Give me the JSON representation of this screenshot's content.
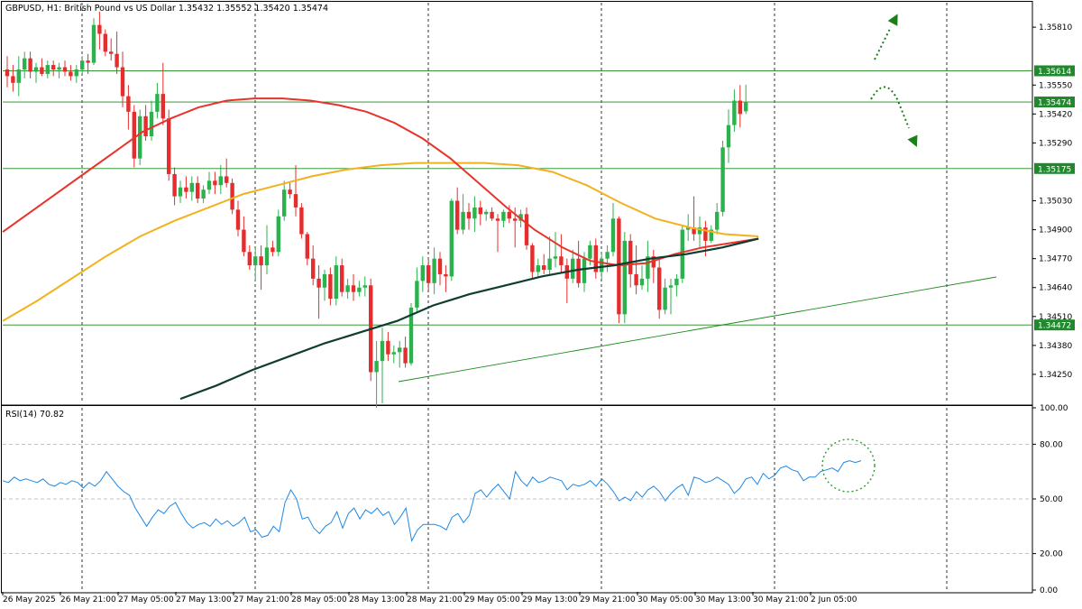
{
  "header": {
    "symbol_line": "GBPUSD, H1:  British Pound vs US Dollar  1.35432 1.35552 1.35420 1.35474"
  },
  "chart_data": [
    {
      "type": "candlestick",
      "title": "GBPUSD, H1:  British Pound vs US Dollar  1.35432 1.35552 1.35420 1.35474",
      "ylim": [
        1.3412,
        1.3592
      ],
      "y_ticks": [
        "1.35810",
        "1.35550",
        "1.35420",
        "1.35290",
        "1.35030",
        "1.34900",
        "1.34770",
        "1.34640",
        "1.34510",
        "1.34380",
        "1.34250"
      ],
      "x_tick_labels": [
        "26 May 2025",
        "26 May 21:00",
        "27 May 05:00",
        "27 May 13:00",
        "27 May 21:00",
        "28 May 05:00",
        "28 May 13:00",
        "28 May 21:00",
        "29 May 05:00",
        "29 May 13:00",
        "29 May 21:00",
        "30 May 05:00",
        "30 May 13:00",
        "30 May 21:00",
        "2 Jun 05:00"
      ],
      "candles": [
        [
          1.3562,
          1.3568,
          1.3554,
          1.3559
        ],
        [
          1.3559,
          1.3564,
          1.3552,
          1.3556
        ],
        [
          1.3556,
          1.3568,
          1.355,
          1.3562
        ],
        [
          1.3562,
          1.357,
          1.3558,
          1.3567
        ],
        [
          1.3567,
          1.357,
          1.3558,
          1.3561
        ],
        [
          1.3561,
          1.3565,
          1.3556,
          1.3563
        ],
        [
          1.3563,
          1.3567,
          1.3559,
          1.356
        ],
        [
          1.356,
          1.3566,
          1.3558,
          1.3564
        ],
        [
          1.3564,
          1.3566,
          1.3559,
          1.3562
        ],
        [
          1.3562,
          1.3565,
          1.3558,
          1.3563
        ],
        [
          1.3563,
          1.3566,
          1.3559,
          1.3561
        ],
        [
          1.3561,
          1.3564,
          1.3557,
          1.3559
        ],
        [
          1.3559,
          1.3564,
          1.3556,
          1.3562
        ],
        [
          1.3562,
          1.3568,
          1.356,
          1.3566
        ],
        [
          1.3566,
          1.3569,
          1.356,
          1.3565
        ],
        [
          1.3565,
          1.3585,
          1.3564,
          1.3582
        ],
        [
          1.3582,
          1.3588,
          1.3571,
          1.3578
        ],
        [
          1.3578,
          1.358,
          1.3568,
          1.357
        ],
        [
          1.357,
          1.3576,
          1.3566,
          1.3569
        ],
        [
          1.3569,
          1.3579,
          1.356,
          1.3563
        ],
        [
          1.3563,
          1.357,
          1.3545,
          1.355
        ],
        [
          1.355,
          1.3555,
          1.3535,
          1.3543
        ],
        [
          1.3543,
          1.3546,
          1.3518,
          1.3522
        ],
        [
          1.3522,
          1.3544,
          1.3519,
          1.3541
        ],
        [
          1.3541,
          1.3546,
          1.353,
          1.3532
        ],
        [
          1.3532,
          1.3548,
          1.353,
          1.3543
        ],
        [
          1.3543,
          1.3556,
          1.354,
          1.3551
        ],
        [
          1.3551,
          1.3565,
          1.3537,
          1.354
        ],
        [
          1.354,
          1.3544,
          1.3512,
          1.3515
        ],
        [
          1.3515,
          1.3518,
          1.3501,
          1.3505
        ],
        [
          1.3505,
          1.3512,
          1.3502,
          1.3509
        ],
        [
          1.3509,
          1.3514,
          1.3504,
          1.3507
        ],
        [
          1.3507,
          1.3514,
          1.3503,
          1.3511
        ],
        [
          1.3511,
          1.3514,
          1.3502,
          1.3504
        ],
        [
          1.3504,
          1.351,
          1.3502,
          1.3508
        ],
        [
          1.3508,
          1.3516,
          1.3506,
          1.3512
        ],
        [
          1.3512,
          1.3516,
          1.3506,
          1.351
        ],
        [
          1.351,
          1.3519,
          1.3506,
          1.3514
        ],
        [
          1.3514,
          1.3522,
          1.3509,
          1.3511
        ],
        [
          1.3511,
          1.3513,
          1.3497,
          1.3499
        ],
        [
          1.3499,
          1.3503,
          1.3487,
          1.349
        ],
        [
          1.349,
          1.3496,
          1.3478,
          1.348
        ],
        [
          1.348,
          1.3483,
          1.3472,
          1.3474
        ],
        [
          1.3474,
          1.3482,
          1.3467,
          1.3478
        ],
        [
          1.3478,
          1.3483,
          1.3463,
          1.3474
        ],
        [
          1.3474,
          1.3492,
          1.347,
          1.3482
        ],
        [
          1.3482,
          1.3485,
          1.3478,
          1.348
        ],
        [
          1.348,
          1.3499,
          1.3478,
          1.3496
        ],
        [
          1.3496,
          1.3512,
          1.3494,
          1.3508
        ],
        [
          1.3508,
          1.3511,
          1.3504,
          1.3506
        ],
        [
          1.3506,
          1.3519,
          1.3496,
          1.35
        ],
        [
          1.35,
          1.3502,
          1.3486,
          1.3488
        ],
        [
          1.3488,
          1.3489,
          1.3474,
          1.3477
        ],
        [
          1.3477,
          1.3483,
          1.3465,
          1.3468
        ],
        [
          1.3468,
          1.3474,
          1.345,
          1.3464
        ],
        [
          1.3464,
          1.3472,
          1.3458,
          1.347
        ],
        [
          1.347,
          1.3473,
          1.3456,
          1.3459
        ],
        [
          1.3459,
          1.3478,
          1.3456,
          1.3474
        ],
        [
          1.3474,
          1.3477,
          1.346,
          1.3462
        ],
        [
          1.3462,
          1.3468,
          1.3459,
          1.3465
        ],
        [
          1.3465,
          1.347,
          1.3458,
          1.3462
        ],
        [
          1.3462,
          1.3467,
          1.346,
          1.3464
        ],
        [
          1.3464,
          1.3469,
          1.346,
          1.3465
        ],
        [
          1.3465,
          1.3468,
          1.3422,
          1.3426
        ],
        [
          1.3426,
          1.344,
          1.341,
          1.3431
        ],
        [
          1.3431,
          1.3446,
          1.3412,
          1.344
        ],
        [
          1.344,
          1.3444,
          1.3431,
          1.3434
        ],
        [
          1.3434,
          1.3438,
          1.343,
          1.3435
        ],
        [
          1.3435,
          1.344,
          1.3428,
          1.3437
        ],
        [
          1.3437,
          1.3442,
          1.3428,
          1.343
        ],
        [
          1.343,
          1.3457,
          1.3429,
          1.3455
        ],
        [
          1.3455,
          1.3473,
          1.3453,
          1.3467
        ],
        [
          1.3467,
          1.3478,
          1.3462,
          1.3474
        ],
        [
          1.3474,
          1.3477,
          1.3463,
          1.3466
        ],
        [
          1.3466,
          1.3482,
          1.3461,
          1.3477
        ],
        [
          1.3477,
          1.348,
          1.3465,
          1.347
        ],
        [
          1.347,
          1.3474,
          1.3462,
          1.3469
        ],
        [
          1.3469,
          1.3504,
          1.3467,
          1.3503
        ],
        [
          1.3503,
          1.3509,
          1.3488,
          1.349
        ],
        [
          1.349,
          1.3506,
          1.3488,
          1.3498
        ],
        [
          1.3498,
          1.3502,
          1.349,
          1.3495
        ],
        [
          1.3495,
          1.3505,
          1.3489,
          1.35
        ],
        [
          1.35,
          1.3503,
          1.3492,
          1.3497
        ],
        [
          1.3497,
          1.3499,
          1.3494,
          1.3498
        ],
        [
          1.3498,
          1.35,
          1.3494,
          1.3495
        ],
        [
          1.3495,
          1.3497,
          1.348,
          1.3494
        ],
        [
          1.3494,
          1.3499,
          1.3491,
          1.3498
        ],
        [
          1.3498,
          1.3501,
          1.3493,
          1.3495
        ],
        [
          1.3495,
          1.35,
          1.3482,
          1.3494
        ],
        [
          1.3494,
          1.3499,
          1.3491,
          1.3497
        ],
        [
          1.3497,
          1.35,
          1.3481,
          1.3483
        ],
        [
          1.3483,
          1.3484,
          1.3468,
          1.3471
        ],
        [
          1.3471,
          1.3477,
          1.3469,
          1.3474
        ],
        [
          1.3474,
          1.3479,
          1.347,
          1.3472
        ],
        [
          1.3472,
          1.3487,
          1.347,
          1.3477
        ],
        [
          1.3477,
          1.3489,
          1.3473,
          1.3478
        ],
        [
          1.3478,
          1.3488,
          1.3471,
          1.3474
        ],
        [
          1.3474,
          1.3477,
          1.3457,
          1.3468
        ],
        [
          1.3468,
          1.3481,
          1.3466,
          1.3477
        ],
        [
          1.3477,
          1.3485,
          1.3464,
          1.3466
        ],
        [
          1.3466,
          1.348,
          1.3462,
          1.3477
        ],
        [
          1.3477,
          1.3485,
          1.3474,
          1.3483
        ],
        [
          1.3483,
          1.3486,
          1.3468,
          1.3471
        ],
        [
          1.3471,
          1.348,
          1.3468,
          1.3477
        ],
        [
          1.3477,
          1.3483,
          1.3471,
          1.348
        ],
        [
          1.348,
          1.3502,
          1.3478,
          1.3495
        ],
        [
          1.3495,
          1.3496,
          1.3448,
          1.3452
        ],
        [
          1.3452,
          1.3489,
          1.3448,
          1.3485
        ],
        [
          1.3485,
          1.3488,
          1.3464,
          1.347
        ],
        [
          1.347,
          1.3483,
          1.3461,
          1.3465
        ],
        [
          1.3465,
          1.3474,
          1.3463,
          1.3468
        ],
        [
          1.3468,
          1.3485,
          1.3462,
          1.3478
        ],
        [
          1.3478,
          1.3481,
          1.3466,
          1.3473
        ],
        [
          1.3473,
          1.3477,
          1.345,
          1.3454
        ],
        [
          1.3454,
          1.3468,
          1.3452,
          1.3464
        ],
        [
          1.3464,
          1.3468,
          1.3452,
          1.3465
        ],
        [
          1.3465,
          1.347,
          1.346,
          1.3468
        ],
        [
          1.3468,
          1.3492,
          1.3466,
          1.349
        ],
        [
          1.349,
          1.3497,
          1.3485,
          1.3491
        ],
        [
          1.3491,
          1.3505,
          1.3485,
          1.3488
        ],
        [
          1.3488,
          1.3496,
          1.3482,
          1.3491
        ],
        [
          1.3491,
          1.3494,
          1.3478,
          1.3485
        ],
        [
          1.3485,
          1.3492,
          1.3484,
          1.349
        ],
        [
          1.349,
          1.3502,
          1.3488,
          1.3498
        ],
        [
          1.3498,
          1.353,
          1.3496,
          1.3527
        ],
        [
          1.3527,
          1.3544,
          1.352,
          1.3537
        ],
        [
          1.3537,
          1.3553,
          1.3534,
          1.3548
        ],
        [
          1.3548,
          1.3555,
          1.3536,
          1.3542
        ],
        [
          1.35432,
          1.35552,
          1.3542,
          1.35474
        ]
      ],
      "series": [
        {
          "name": "",
          "color": "#e8332a",
          "start": 0,
          "values": [
            1.3489,
            1.3498,
            1.3507,
            1.3516,
            1.3525,
            1.3534,
            1.354,
            1.3545,
            1.3548,
            1.3549,
            1.3549,
            1.3548,
            1.3546,
            1.3543,
            1.3538,
            1.3531,
            1.3522,
            1.3511,
            1.35,
            1.349,
            1.3482,
            1.3476,
            1.3474,
            1.3475,
            1.3479,
            1.3482,
            1.3484,
            1.3486
          ]
        },
        {
          "name": "",
          "color": "#f2b21e",
          "start": 0,
          "values": [
            1.3449,
            1.3458,
            1.3468,
            1.3478,
            1.3487,
            1.3494,
            1.35,
            1.3506,
            1.351,
            1.3514,
            1.3517,
            1.3519,
            1.352,
            1.352,
            1.352,
            1.3519,
            1.3516,
            1.351,
            1.3502,
            1.3495,
            1.3491,
            1.3488,
            1.3487
          ]
        },
        {
          "name": "",
          "color": "#0f3d32",
          "start": 0,
          "values": [
            1.3414,
            1.342,
            1.3427,
            1.3433,
            1.3439,
            1.3444,
            1.3449,
            1.3456,
            1.3461,
            1.3465,
            1.3469,
            1.3472,
            1.3474,
            1.3477,
            1.3479,
            1.3482,
            1.3486
          ]
        }
      ],
      "annotations": [
        {
          "label": "1.35614",
          "value": 1.35614
        },
        {
          "label": "1.35474",
          "value": 1.35474
        },
        {
          "label": "1.35175",
          "value": 1.35175
        },
        {
          "label": "1.34472",
          "value": 1.34472
        }
      ]
    },
    {
      "type": "line",
      "title": "RSI(14) 70.82",
      "ylim": [
        0,
        100
      ],
      "y_ticks": [
        "100.00",
        "80.00",
        "50.00",
        "20.00",
        "0.00"
      ],
      "series": [
        {
          "name": "RSI(14)",
          "color": "#1e88e5",
          "values": [
            60,
            59,
            62,
            60,
            61,
            60,
            59,
            61,
            58,
            57,
            59,
            58,
            60,
            59,
            56,
            59,
            57,
            60,
            65,
            61,
            57,
            54,
            52,
            45,
            40,
            35,
            40,
            44,
            42,
            46,
            48,
            42,
            37,
            34,
            36,
            37,
            35,
            39,
            36,
            38,
            35,
            37,
            40,
            32,
            33,
            29,
            30,
            35,
            32,
            48,
            55,
            50,
            39,
            40,
            34,
            31,
            35,
            37,
            43,
            34,
            42,
            45,
            39,
            44,
            42,
            45,
            41,
            43,
            36,
            40,
            45,
            27,
            33,
            36,
            36,
            36,
            35,
            33,
            40,
            42,
            37,
            41,
            53,
            55,
            51,
            55,
            58,
            54,
            50,
            65,
            60,
            57,
            62,
            59,
            60,
            62,
            61,
            60,
            55,
            58,
            57,
            58,
            60,
            57,
            61,
            58,
            54,
            49,
            51,
            49,
            54,
            51,
            55,
            57,
            54,
            49,
            53,
            56,
            58,
            52,
            62,
            61,
            59,
            60,
            62,
            60,
            58,
            53,
            56,
            61,
            62,
            58,
            64,
            61,
            63,
            67,
            68,
            66,
            65,
            60,
            62,
            62,
            65,
            66,
            67,
            65,
            70,
            71,
            70,
            71
          ]
        }
      ],
      "levels": [
        80,
        50,
        20
      ]
    }
  ]
}
